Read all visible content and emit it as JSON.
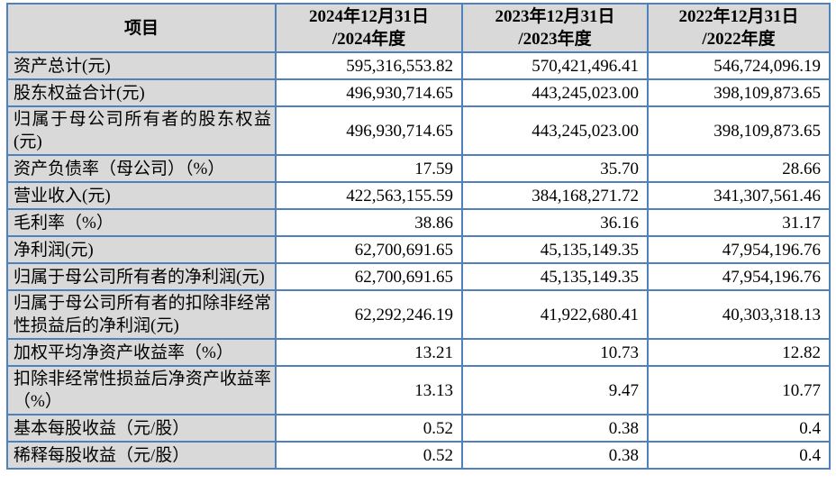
{
  "table": {
    "colors": {
      "border": "#4f81bd",
      "header_bg": "#d9d9d9"
    },
    "header": {
      "item_label": "项目",
      "periods": [
        "2024年12月31日\n/2024年度",
        "2023年12月31日\n/2023年度",
        "2022年12月31日\n/2022年度"
      ]
    },
    "rows": [
      {
        "item": "资产总计(元)",
        "values": [
          "595,316,553.82",
          "570,421,496.41",
          "546,724,096.19"
        ]
      },
      {
        "item": "股东权益合计(元)",
        "values": [
          "496,930,714.65",
          "443,245,023.00",
          "398,109,873.65"
        ]
      },
      {
        "item": "归属于母公司所有者的股东权益(元)",
        "values": [
          "496,930,714.65",
          "443,245,023.00",
          "398,109,873.65"
        ]
      },
      {
        "item": "资产负债率（母公司）（%）",
        "values": [
          "17.59",
          "35.70",
          "28.66"
        ]
      },
      {
        "item": "营业收入(元)",
        "values": [
          "422,563,155.59",
          "384,168,271.72",
          "341,307,561.46"
        ]
      },
      {
        "item": "毛利率（%）",
        "values": [
          "38.86",
          "36.16",
          "31.17"
        ]
      },
      {
        "item": "净利润(元)",
        "values": [
          "62,700,691.65",
          "45,135,149.35",
          "47,954,196.76"
        ]
      },
      {
        "item": "归属于母公司所有者的净利润(元)",
        "values": [
          "62,700,691.65",
          "45,135,149.35",
          "47,954,196.76"
        ]
      },
      {
        "item": "归属于母公司所有者的扣除非经常性损益后的净利润(元)",
        "values": [
          "62,292,246.19",
          "41,922,680.41",
          "40,303,318.13"
        ]
      },
      {
        "item": "加权平均净资产收益率（%）",
        "values": [
          "13.21",
          "10.73",
          "12.82"
        ]
      },
      {
        "item": "扣除非经常性损益后净资产收益率（%）",
        "values": [
          "13.13",
          "9.47",
          "10.77"
        ]
      },
      {
        "item": "基本每股收益（元/股）",
        "values": [
          "0.52",
          "0.38",
          "0.4"
        ]
      },
      {
        "item": "稀释每股收益（元/股）",
        "values": [
          "0.52",
          "0.38",
          "0.4"
        ]
      }
    ]
  }
}
